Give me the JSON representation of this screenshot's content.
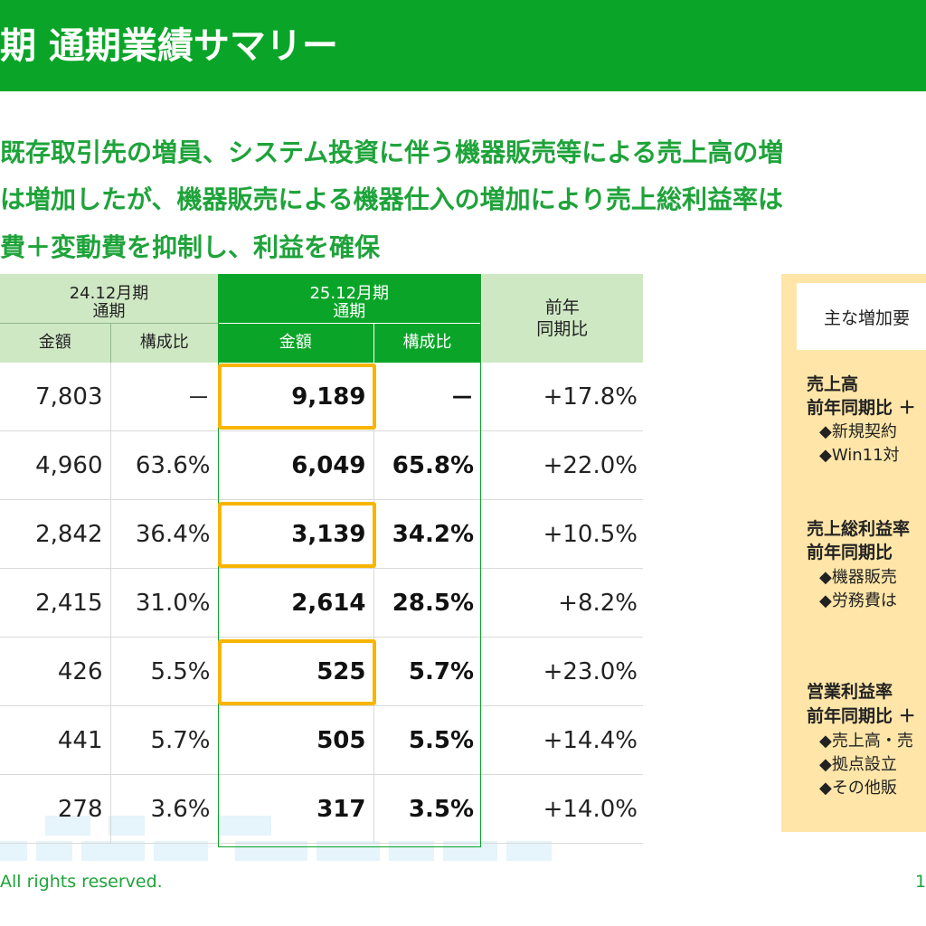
{
  "title": "期 通期業績サマリー",
  "bullets": [
    "既存取引先の増員、システム投資に伴う機器販売等による売上高の増",
    "は増加したが、機器販売による機器仕入の増加により売上総利益率は",
    "費＋変動費を抑制し、利益を確保"
  ],
  "table": {
    "prev_header": "24.12月期\n通期",
    "curr_header": "25.12月期\n通期",
    "yoy_header": "前年\n同期比",
    "amount_label": "金額",
    "ratio_label": "構成比",
    "rows": [
      {
        "prev_amount": "7,803",
        "prev_ratio": "－",
        "curr_amount": "9,189",
        "curr_ratio": "－",
        "yoy": "+17.8%"
      },
      {
        "prev_amount": "4,960",
        "prev_ratio": "63.6%",
        "curr_amount": "6,049",
        "curr_ratio": "65.8%",
        "yoy": "+22.0%"
      },
      {
        "prev_amount": "2,842",
        "prev_ratio": "36.4%",
        "curr_amount": "3,139",
        "curr_ratio": "34.2%",
        "yoy": "+10.5%"
      },
      {
        "prev_amount": "2,415",
        "prev_ratio": "31.0%",
        "curr_amount": "2,614",
        "curr_ratio": "28.5%",
        "yoy": "+8.2%"
      },
      {
        "prev_amount": "426",
        "prev_ratio": "5.5%",
        "curr_amount": "525",
        "curr_ratio": "5.7%",
        "yoy": "+23.0%"
      },
      {
        "prev_amount": "441",
        "prev_ratio": "5.7%",
        "curr_amount": "505",
        "curr_ratio": "5.5%",
        "yoy": "+14.4%"
      },
      {
        "prev_amount": "278",
        "prev_ratio": "3.6%",
        "curr_amount": "317",
        "curr_ratio": "3.5%",
        "yoy": "+14.0%"
      }
    ]
  },
  "side": {
    "header": "主な増加要",
    "sections": [
      {
        "title": "売上高",
        "sub": "前年同期比 ＋",
        "items": [
          "◆新規契約",
          "◆Win11対"
        ]
      },
      {
        "title": "売上総利益率",
        "sub": "前年同期比 ",
        "items": [
          "◆機器販売",
          "◆労務費は"
        ]
      },
      {
        "title": "営業利益率",
        "sub": "前年同期比 ＋",
        "items": [
          "◆売上高・売",
          "◆拠点設立",
          "◆その他販"
        ]
      }
    ]
  },
  "footer": {
    "copyright": "All rights reserved.",
    "page": "1"
  },
  "colors": {
    "brand_green": "#0aa528",
    "text_green": "#1ea33a",
    "header_light": "#cfe8c4",
    "highlight": "#f8b500",
    "side_bg": "#ffe6a8"
  }
}
